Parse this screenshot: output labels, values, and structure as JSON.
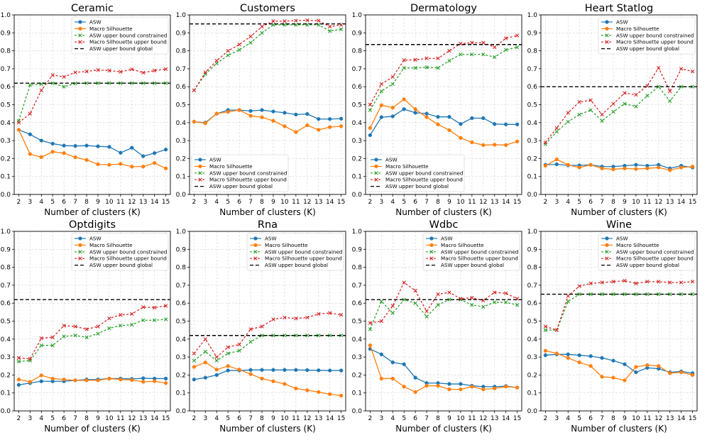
{
  "styles": {
    "ASW": {
      "color": "#1f77b4",
      "marker": "circle",
      "dash": ""
    },
    "Macro Silhouette": {
      "color": "#ff7f0e",
      "marker": "circle",
      "dash": ""
    },
    "ASW upper bound constrained": {
      "color": "#2ca02c",
      "marker": "x",
      "dash": "3 2.5"
    },
    "Macro Silhouette upper bound": {
      "color": "#d62728",
      "marker": "x",
      "dash": "3 2.5"
    },
    "ASW upper bound global": {
      "color": "#000000",
      "marker": "none",
      "dash": "5 3"
    }
  },
  "chart_data": [
    {
      "type": "line",
      "title": "Ceramic",
      "xlabel": "Number of clusters (K)",
      "ylabel": "",
      "x": [
        2,
        3,
        4,
        5,
        6,
        7,
        8,
        9,
        10,
        11,
        12,
        13,
        14,
        15
      ],
      "xlim": [
        1.6,
        15.4
      ],
      "ylim": [
        0,
        1.0
      ],
      "yticks": [
        "0.0",
        "0.1",
        "0.2",
        "0.3",
        "0.4",
        "0.5",
        "0.6",
        "0.7",
        "0.8",
        "0.9",
        "1.0"
      ],
      "legend": "top-right",
      "series": [
        {
          "name": "ASW",
          "values": [
            0.36,
            0.335,
            0.3,
            0.283,
            0.272,
            0.27,
            0.272,
            0.268,
            0.265,
            0.232,
            0.26,
            0.213,
            0.23,
            0.25
          ]
        },
        {
          "name": "Macro Silhouette",
          "values": [
            0.36,
            0.225,
            0.208,
            0.238,
            0.23,
            0.207,
            0.192,
            0.168,
            0.165,
            0.17,
            0.155,
            0.155,
            0.175,
            0.145
          ]
        },
        {
          "name": "ASW upper bound constrained",
          "values": [
            0.41,
            0.61,
            0.615,
            0.62,
            0.6,
            0.618,
            0.62,
            0.62,
            0.62,
            0.62,
            0.62,
            0.62,
            0.62,
            0.62
          ]
        },
        {
          "name": "Macro Silhouette upper bound",
          "values": [
            0.4,
            0.45,
            0.58,
            0.665,
            0.655,
            0.68,
            0.685,
            0.693,
            0.69,
            0.683,
            0.697,
            0.678,
            0.69,
            0.698
          ]
        },
        {
          "name": "ASW upper bound global",
          "values": [
            0.62,
            0.62,
            0.62,
            0.62,
            0.62,
            0.62,
            0.62,
            0.62,
            0.62,
            0.62,
            0.62,
            0.62,
            0.62,
            0.62
          ]
        }
      ]
    },
    {
      "type": "line",
      "title": "Customers",
      "xlabel": "Number of clusters (K)",
      "ylabel": "",
      "x": [
        2,
        3,
        4,
        5,
        6,
        7,
        8,
        9,
        10,
        11,
        12,
        13,
        14,
        15
      ],
      "xlim": [
        1.6,
        15.4
      ],
      "ylim": [
        0,
        1.0
      ],
      "yticks": [
        "0.0",
        "0.1",
        "0.2",
        "0.3",
        "0.4",
        "0.5",
        "0.6",
        "0.7",
        "0.8",
        "0.9",
        "1.0"
      ],
      "legend": "lower-center",
      "series": [
        {
          "name": "ASW",
          "values": [
            0.405,
            0.4,
            0.45,
            0.47,
            0.47,
            0.465,
            0.47,
            0.462,
            0.455,
            0.445,
            0.448,
            0.42,
            0.42,
            0.422
          ]
        },
        {
          "name": "Macro Silhouette",
          "values": [
            0.405,
            0.397,
            0.45,
            0.46,
            0.47,
            0.438,
            0.43,
            0.41,
            0.38,
            0.347,
            0.385,
            0.36,
            0.375,
            0.38
          ]
        },
        {
          "name": "ASW upper bound constrained",
          "values": [
            0.58,
            0.67,
            0.73,
            0.775,
            0.805,
            0.845,
            0.9,
            0.945,
            0.945,
            0.945,
            0.945,
            0.945,
            0.91,
            0.92
          ]
        },
        {
          "name": "Macro Silhouette upper bound",
          "values": [
            0.58,
            0.68,
            0.745,
            0.8,
            0.835,
            0.88,
            0.935,
            0.965,
            0.965,
            0.968,
            0.97,
            0.968,
            0.935,
            0.945
          ]
        },
        {
          "name": "ASW upper bound global",
          "values": [
            0.95,
            0.95,
            0.95,
            0.95,
            0.95,
            0.95,
            0.95,
            0.95,
            0.95,
            0.95,
            0.95,
            0.95,
            0.95,
            0.95
          ]
        }
      ]
    },
    {
      "type": "line",
      "title": "Dermatology",
      "xlabel": "Number of clusters (K)",
      "ylabel": "",
      "x": [
        2,
        3,
        4,
        5,
        6,
        7,
        8,
        9,
        10,
        11,
        12,
        13,
        14,
        15
      ],
      "xlim": [
        1.6,
        15.4
      ],
      "ylim": [
        0,
        1.0
      ],
      "yticks": [
        "0.0",
        "0.1",
        "0.2",
        "0.3",
        "0.4",
        "0.5",
        "0.6",
        "0.7",
        "0.8",
        "0.9",
        "1.0"
      ],
      "legend": "lower-center",
      "series": [
        {
          "name": "ASW",
          "values": [
            0.33,
            0.43,
            0.435,
            0.475,
            0.455,
            0.45,
            0.432,
            0.432,
            0.392,
            0.425,
            0.425,
            0.392,
            0.39,
            0.39
          ]
        },
        {
          "name": "Macro Silhouette",
          "values": [
            0.37,
            0.497,
            0.483,
            0.53,
            0.475,
            0.43,
            0.39,
            0.358,
            0.315,
            0.29,
            0.275,
            0.277,
            0.275,
            0.295
          ]
        },
        {
          "name": "ASW upper bound constrained",
          "values": [
            0.47,
            0.575,
            0.615,
            0.705,
            0.705,
            0.708,
            0.705,
            0.745,
            0.78,
            0.78,
            0.78,
            0.765,
            0.805,
            0.82
          ]
        },
        {
          "name": "Macro Silhouette upper bound",
          "values": [
            0.5,
            0.615,
            0.655,
            0.748,
            0.75,
            0.758,
            0.758,
            0.8,
            0.84,
            0.845,
            0.845,
            0.82,
            0.87,
            0.885
          ]
        },
        {
          "name": "ASW upper bound global",
          "values": [
            0.835,
            0.835,
            0.835,
            0.835,
            0.835,
            0.835,
            0.835,
            0.835,
            0.835,
            0.835,
            0.835,
            0.835,
            0.835,
            0.835
          ]
        }
      ]
    },
    {
      "type": "line",
      "title": "Heart Statlog",
      "xlabel": "Number of clusters (K)",
      "ylabel": "",
      "x": [
        2,
        3,
        4,
        5,
        6,
        7,
        8,
        9,
        10,
        11,
        12,
        13,
        14,
        15
      ],
      "xlim": [
        1.6,
        15.4
      ],
      "ylim": [
        0,
        1.0
      ],
      "yticks": [
        "0.0",
        "0.1",
        "0.2",
        "0.3",
        "0.4",
        "0.5",
        "0.6",
        "0.7",
        "0.8",
        "0.9",
        "1.0"
      ],
      "legend": "top-right",
      "series": [
        {
          "name": "ASW",
          "values": [
            0.165,
            0.168,
            0.162,
            0.162,
            0.165,
            0.155,
            0.155,
            0.16,
            0.165,
            0.16,
            0.165,
            0.145,
            0.16,
            0.15
          ]
        },
        {
          "name": "Macro Silhouette",
          "values": [
            0.16,
            0.195,
            0.165,
            0.15,
            0.165,
            0.145,
            0.14,
            0.145,
            0.142,
            0.145,
            0.15,
            0.135,
            0.15,
            0.155
          ]
        },
        {
          "name": "ASW upper bound constrained",
          "values": [
            0.28,
            0.35,
            0.405,
            0.445,
            0.47,
            0.41,
            0.46,
            0.505,
            0.49,
            0.55,
            0.6,
            0.52,
            0.6,
            0.6
          ]
        },
        {
          "name": "Macro Silhouette upper bound",
          "values": [
            0.29,
            0.37,
            0.455,
            0.515,
            0.525,
            0.445,
            0.505,
            0.565,
            0.555,
            0.605,
            0.705,
            0.575,
            0.7,
            0.685
          ]
        },
        {
          "name": "ASW upper bound global",
          "values": [
            0.6,
            0.6,
            0.6,
            0.6,
            0.6,
            0.6,
            0.6,
            0.6,
            0.6,
            0.6,
            0.6,
            0.6,
            0.6,
            0.6
          ]
        }
      ]
    },
    {
      "type": "line",
      "title": "Optdigits",
      "xlabel": "Number of clusters (K)",
      "ylabel": "",
      "x": [
        2,
        3,
        4,
        5,
        6,
        7,
        8,
        9,
        10,
        11,
        12,
        13,
        14,
        15
      ],
      "xlim": [
        1.6,
        15.4
      ],
      "ylim": [
        0,
        1.0
      ],
      "yticks": [
        "0.0",
        "0.1",
        "0.2",
        "0.3",
        "0.4",
        "0.5",
        "0.6",
        "0.7",
        "0.8",
        "0.9",
        "1.0"
      ],
      "legend": "top-right",
      "series": [
        {
          "name": "ASW",
          "values": [
            0.145,
            0.155,
            0.165,
            0.165,
            0.165,
            0.17,
            0.175,
            0.175,
            0.18,
            0.18,
            0.178,
            0.182,
            0.18,
            0.18
          ]
        },
        {
          "name": "Macro Silhouette",
          "values": [
            0.175,
            0.162,
            0.198,
            0.18,
            0.175,
            0.17,
            0.17,
            0.17,
            0.18,
            0.175,
            0.172,
            0.162,
            0.165,
            0.155
          ]
        },
        {
          "name": "ASW upper bound constrained",
          "values": [
            0.275,
            0.28,
            0.365,
            0.365,
            0.415,
            0.42,
            0.41,
            0.43,
            0.46,
            0.475,
            0.48,
            0.505,
            0.505,
            0.51
          ]
        },
        {
          "name": "Macro Silhouette upper bound",
          "values": [
            0.295,
            0.29,
            0.405,
            0.41,
            0.475,
            0.47,
            0.455,
            0.47,
            0.515,
            0.535,
            0.54,
            0.578,
            0.575,
            0.585
          ]
        },
        {
          "name": "ASW upper bound global",
          "values": [
            0.62,
            0.62,
            0.62,
            0.62,
            0.62,
            0.62,
            0.62,
            0.62,
            0.62,
            0.62,
            0.62,
            0.62,
            0.62,
            0.62
          ]
        }
      ]
    },
    {
      "type": "line",
      "title": "Rna",
      "xlabel": "Number of clusters (K)",
      "ylabel": "",
      "x": [
        2,
        3,
        4,
        5,
        6,
        7,
        8,
        9,
        10,
        11,
        12,
        13,
        14,
        15
      ],
      "xlim": [
        1.6,
        15.4
      ],
      "ylim": [
        0,
        1.0
      ],
      "yticks": [
        "0.0",
        "0.1",
        "0.2",
        "0.3",
        "0.4",
        "0.5",
        "0.6",
        "0.7",
        "0.8",
        "0.9",
        "1.0"
      ],
      "legend": "top-right",
      "series": [
        {
          "name": "ASW",
          "values": [
            0.175,
            0.185,
            0.2,
            0.225,
            0.225,
            0.228,
            0.228,
            0.228,
            0.228,
            0.228,
            0.227,
            0.226,
            0.225,
            0.225
          ]
        },
        {
          "name": "Macro Silhouette",
          "values": [
            0.245,
            0.27,
            0.23,
            0.25,
            0.23,
            0.205,
            0.18,
            0.165,
            0.15,
            0.125,
            0.115,
            0.105,
            0.093,
            0.085
          ]
        },
        {
          "name": "ASW upper bound constrained",
          "values": [
            0.28,
            0.33,
            0.28,
            0.32,
            0.335,
            0.385,
            0.42,
            0.42,
            0.42,
            0.42,
            0.42,
            0.42,
            0.42,
            0.42
          ]
        },
        {
          "name": "Macro Silhouette upper bound",
          "values": [
            0.32,
            0.4,
            0.3,
            0.355,
            0.37,
            0.455,
            0.47,
            0.51,
            0.52,
            0.515,
            0.52,
            0.54,
            0.545,
            0.535
          ]
        },
        {
          "name": "ASW upper bound global",
          "values": [
            0.42,
            0.42,
            0.42,
            0.42,
            0.42,
            0.42,
            0.42,
            0.42,
            0.42,
            0.42,
            0.42,
            0.42,
            0.42,
            0.42
          ]
        }
      ]
    },
    {
      "type": "line",
      "title": "Wdbc",
      "xlabel": "Number of clusters (K)",
      "ylabel": "",
      "x": [
        2,
        3,
        4,
        5,
        6,
        7,
        8,
        9,
        10,
        11,
        12,
        13,
        14,
        15
      ],
      "xlim": [
        1.6,
        15.4
      ],
      "ylim": [
        0,
        1.0
      ],
      "yticks": [
        "0.0",
        "0.1",
        "0.2",
        "0.3",
        "0.4",
        "0.5",
        "0.6",
        "0.7",
        "0.8",
        "0.9",
        "1.0"
      ],
      "legend": "top-right",
      "series": [
        {
          "name": "ASW",
          "values": [
            0.345,
            0.315,
            0.27,
            0.26,
            0.185,
            0.155,
            0.155,
            0.15,
            0.15,
            0.14,
            0.135,
            0.135,
            0.138,
            0.13
          ]
        },
        {
          "name": "Macro Silhouette",
          "values": [
            0.365,
            0.18,
            0.18,
            0.135,
            0.105,
            0.14,
            0.14,
            0.12,
            0.12,
            0.135,
            0.12,
            0.125,
            0.135,
            0.13
          ]
        },
        {
          "name": "ASW upper bound constrained",
          "values": [
            0.455,
            0.61,
            0.545,
            0.62,
            0.6,
            0.525,
            0.59,
            0.62,
            0.62,
            0.59,
            0.58,
            0.605,
            0.605,
            0.59
          ]
        },
        {
          "name": "Macro Silhouette upper bound",
          "values": [
            0.49,
            0.5,
            0.585,
            0.715,
            0.67,
            0.555,
            0.65,
            0.66,
            0.625,
            0.63,
            0.615,
            0.66,
            0.655,
            0.625
          ]
        },
        {
          "name": "ASW upper bound global",
          "values": [
            0.62,
            0.62,
            0.62,
            0.62,
            0.62,
            0.62,
            0.62,
            0.62,
            0.62,
            0.62,
            0.62,
            0.62,
            0.62,
            0.62
          ]
        }
      ]
    },
    {
      "type": "line",
      "title": "Wine",
      "xlabel": "Number of clusters (K)",
      "ylabel": "",
      "x": [
        2,
        3,
        4,
        5,
        6,
        7,
        8,
        9,
        10,
        11,
        12,
        13,
        14,
        15
      ],
      "xlim": [
        1.6,
        15.4
      ],
      "ylim": [
        0,
        1.0
      ],
      "yticks": [
        "0.0",
        "0.1",
        "0.2",
        "0.3",
        "0.4",
        "0.5",
        "0.6",
        "0.7",
        "0.8",
        "0.9",
        "1.0"
      ],
      "legend": "top-right",
      "series": [
        {
          "name": "ASW",
          "values": [
            0.31,
            0.315,
            0.315,
            0.31,
            0.305,
            0.295,
            0.28,
            0.26,
            0.215,
            0.24,
            0.235,
            0.215,
            0.22,
            0.21
          ]
        },
        {
          "name": "Macro Silhouette",
          "values": [
            0.335,
            0.32,
            0.295,
            0.27,
            0.25,
            0.19,
            0.185,
            0.17,
            0.245,
            0.255,
            0.25,
            0.21,
            0.215,
            0.2
          ]
        },
        {
          "name": "ASW upper bound constrained",
          "values": [
            0.45,
            0.45,
            0.61,
            0.65,
            0.65,
            0.65,
            0.65,
            0.65,
            0.65,
            0.65,
            0.65,
            0.65,
            0.65,
            0.65
          ]
        },
        {
          "name": "Macro Silhouette upper bound",
          "values": [
            0.47,
            0.45,
            0.64,
            0.695,
            0.71,
            0.715,
            0.72,
            0.725,
            0.71,
            0.72,
            0.72,
            0.715,
            0.715,
            0.72
          ]
        },
        {
          "name": "ASW upper bound global",
          "values": [
            0.65,
            0.65,
            0.65,
            0.65,
            0.65,
            0.65,
            0.65,
            0.65,
            0.65,
            0.65,
            0.65,
            0.65,
            0.65,
            0.65
          ]
        }
      ]
    }
  ]
}
